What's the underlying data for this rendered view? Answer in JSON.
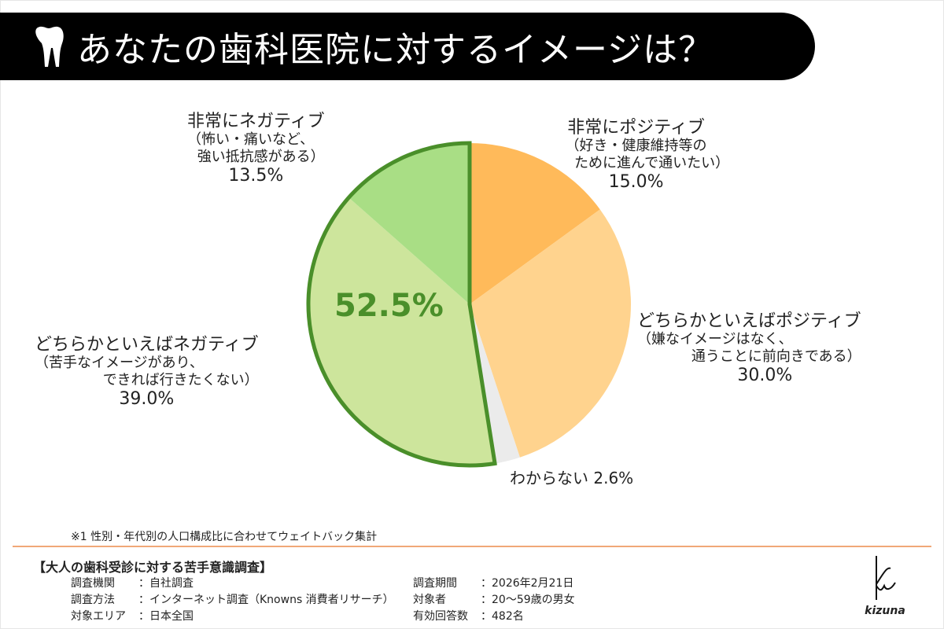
{
  "title": "あなたの歯科医院に対するイメージは？",
  "chart_data": {
    "type": "pie",
    "title": "あなたの歯科医院に対するイメージは？",
    "start": "12 o'clock, clockwise",
    "slices": [
      {
        "name": "非常にポジティブ",
        "note": "（好き・健康維持等のために進んで通いたい）",
        "value": 15.0,
        "label": "15.0%",
        "color": "#FFBA5A"
      },
      {
        "name": "どちらかといえばポジティブ",
        "note": "（嫌なイメージはなく、通うことに前向きである）",
        "value": 30.0,
        "label": "30.0%",
        "color": "#FFD38E"
      },
      {
        "name": "わからない",
        "note": "",
        "value": 2.6,
        "label": "2.6%",
        "color": "#EBEBEB"
      },
      {
        "name": "どちらかといえばネガティブ",
        "note": "（苦手なイメージがあり、できれば行きたくない）",
        "value": 39.0,
        "label": "39.0%",
        "color": "#CDE59C"
      },
      {
        "name": "非常にネガティブ",
        "note": "（怖い・痛いなど、強い抵抗感がある）",
        "value": 13.5,
        "label": "13.5%",
        "color": "#A9DE85"
      }
    ],
    "highlight": {
      "label": "52.5%",
      "value": 52.5,
      "color": "#4A8F2A"
    }
  },
  "labels": {
    "pos_strong": {
      "l1": "非常にポジティブ",
      "l2": "（好き・健康維持等の",
      "l3": "ために進んで通いたい）"
    },
    "pos": {
      "l1": "どちらかといえばポジティブ",
      "l2": "（嫌なイメージはなく、",
      "l3": "通うことに前向きである）"
    },
    "unknown": {
      "l1": "わからない 2.6%"
    },
    "neg": {
      "l1": "どちらかといえばネガティブ",
      "l2": "（苦手なイメージがあり、",
      "l3": "できれば行きたくない）"
    },
    "neg_strong": {
      "l1": "非常にネガティブ",
      "l2": "（怖い・痛いなど、",
      "l3": "強い抵抗感がある）"
    }
  },
  "note": "※1 性別・年代別の人口構成比に合わせてウェイトバック集計",
  "survey": {
    "title": "【大人の歯科受診に対する苦手意識調査】",
    "left": [
      {
        "k": "調査機関",
        "v": "：自社調査"
      },
      {
        "k": "調査方法",
        "v": "：インターネット調査（Knowns 消費者リサーチ）"
      },
      {
        "k": "対象エリア",
        "v": "：日本全国"
      }
    ],
    "right": [
      {
        "k": "調査期間",
        "v": "：2026年2月21日"
      },
      {
        "k": "対象者",
        "v": "：20〜59歳の男女"
      },
      {
        "k": "有効回答数",
        "v": "：482名"
      }
    ]
  },
  "logo": "kizuna"
}
